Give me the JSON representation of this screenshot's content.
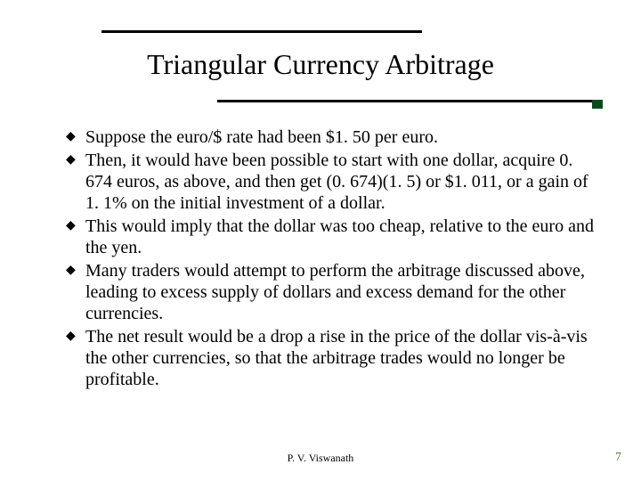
{
  "title": "Triangular Currency Arbitrage",
  "bullets": [
    "Suppose the euro/$ rate had been $1. 50 per euro.",
    "Then, it would have been possible to start with one dollar, acquire 0. 674 euros, as above, and then get (0. 674)(1. 5) or $1. 011, or a gain of 1. 1% on the initial investment of a dollar.",
    "This would imply that the dollar was too cheap, relative to the euro and the yen.",
    "Many traders would attempt to perform the arbitrage discussed above, leading to excess supply of dollars and excess demand for the other currencies.",
    "The net result would be a drop a rise in the price of the dollar vis-à-vis the other currencies, so that the arbitrage trades would no longer be profitable."
  ],
  "bullet_glyph": "◆",
  "footer": "P. V. Viswanath",
  "page_number": "7",
  "colors": {
    "rule": "#000000",
    "accent": "#004d1a",
    "pagenum": "#5a7a3a",
    "text": "#000000",
    "background": "#ffffff"
  },
  "fontsizes": {
    "title": 32,
    "body": 20,
    "footer": 12,
    "pagenum": 14
  }
}
